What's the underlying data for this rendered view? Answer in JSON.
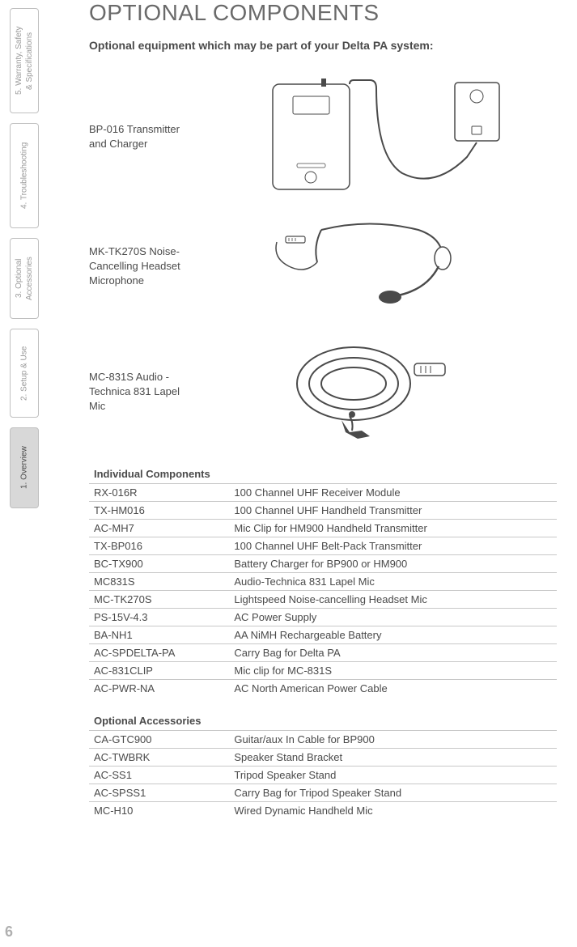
{
  "sidebar": {
    "tabs": [
      {
        "label": "5. Warranty, Safety & Specifications",
        "active": false
      },
      {
        "label": "4. Troubleshooting",
        "active": false
      },
      {
        "label": "3. Optional Accessories",
        "active": false
      },
      {
        "label": "2. Setup & Use",
        "active": false
      },
      {
        "label": "1. Overview",
        "active": true
      }
    ]
  },
  "heading": "OPTIONAL COMPONENTS",
  "subheading": "Optional equipment which may be part of your Delta PA system:",
  "components": [
    {
      "label": "BP-016 Transmitter and Charger"
    },
    {
      "label": "MK-TK270S Noise-Cancelling Headset Microphone"
    },
    {
      "label": "MC-831S Audio -Technica 831 Lapel Mic"
    }
  ],
  "tables": [
    {
      "title": "Individual Components",
      "rows": [
        [
          "RX-016R",
          "100 Channel UHF Receiver Module"
        ],
        [
          "TX-HM016",
          "100 Channel UHF Handheld Transmitter"
        ],
        [
          "AC-MH7",
          "Mic Clip for HM900 Handheld Transmitter"
        ],
        [
          "TX-BP016",
          "100 Channel UHF Belt-Pack Transmitter"
        ],
        [
          "BC-TX900",
          "Battery Charger for BP900 or HM900"
        ],
        [
          "MC831S",
          "Audio-Technica 831 Lapel Mic"
        ],
        [
          "MC-TK270S",
          "Lightspeed Noise-cancelling Headset Mic"
        ],
        [
          "PS-15V-4.3",
          "AC Power Supply"
        ],
        [
          "BA-NH1",
          "AA NiMH Rechargeable Battery"
        ],
        [
          "AC-SPDELTA-PA",
          "Carry Bag for Delta PA"
        ],
        [
          "AC-831CLIP",
          "Mic clip for MC-831S"
        ],
        [
          "AC-PWR-NA",
          "AC North American Power Cable"
        ]
      ]
    },
    {
      "title": "Optional Accessories",
      "rows": [
        [
          "CA-GTC900",
          "Guitar/aux In Cable for BP900"
        ],
        [
          "AC-TWBRK",
          "Speaker Stand Bracket"
        ],
        [
          "AC-SS1",
          "Tripod Speaker Stand"
        ],
        [
          "AC-SPSS1",
          "Carry Bag for Tripod Speaker Stand"
        ],
        [
          "MC-H10",
          "Wired Dynamic Handheld Mic"
        ]
      ]
    }
  ],
  "page_number": "6",
  "colors": {
    "text": "#4a4a4a",
    "muted": "#9a9a9a",
    "border": "#c8c8c8",
    "active_tab_bg": "#d8d8d8"
  }
}
